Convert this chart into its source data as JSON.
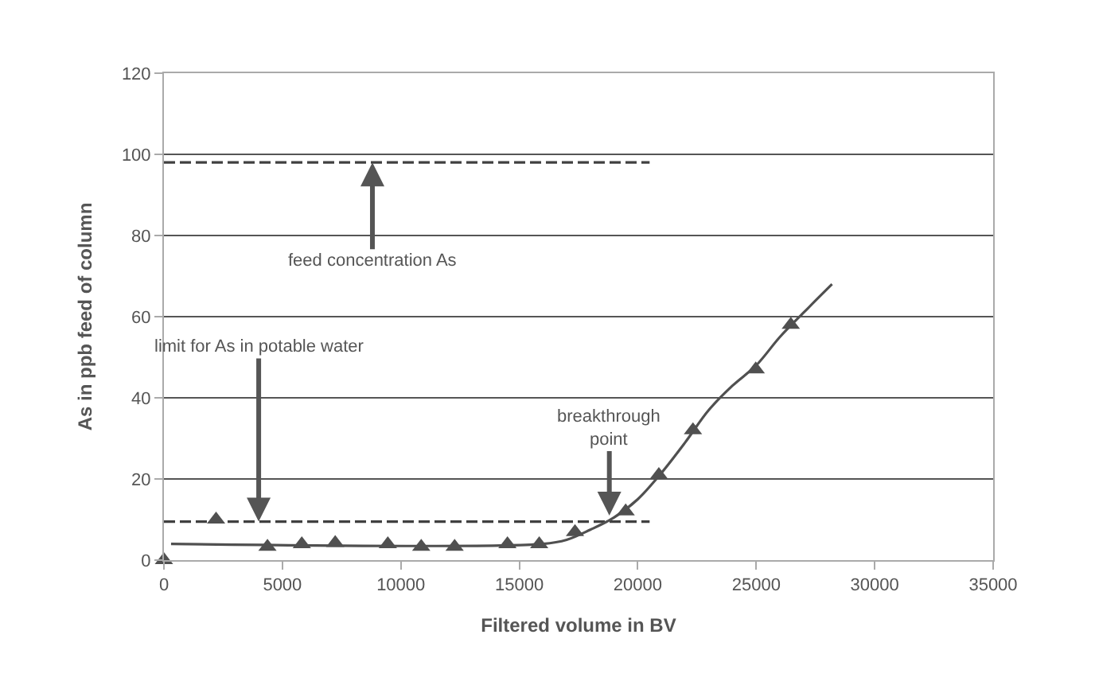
{
  "chart_data": {
    "type": "scatter",
    "xlabel": "Filtered volume in BV",
    "ylabel": "As in ppb feed of column",
    "xlim": [
      0,
      35000
    ],
    "xticks": [
      0,
      5000,
      10000,
      15000,
      20000,
      25000,
      30000,
      35000
    ],
    "ylim": [
      0,
      120
    ],
    "yticks": [
      0,
      20,
      40,
      60,
      80,
      100,
      120
    ],
    "grid": "y",
    "series": [
      {
        "type": "line",
        "color": "#404040",
        "line_style": "dashed",
        "marker": "none",
        "x": [
          0,
          20500
        ],
        "values": [
          98,
          98
        ]
      },
      {
        "type": "line",
        "color": "#404040",
        "line_style": "dashed",
        "marker": "none",
        "x": [
          0,
          20500
        ],
        "values": [
          9.5,
          9.5
        ]
      },
      {
        "type": "line",
        "color": "#505050",
        "line_style": "solid",
        "marker": "none",
        "x": [
          300,
          16000,
          17000,
          18000,
          19000,
          20000,
          21000,
          22000,
          23000,
          24000,
          25000,
          26000,
          27000,
          28200
        ],
        "values": [
          4,
          4,
          5,
          7.5,
          10.5,
          15,
          21.5,
          29,
          37,
          43,
          48,
          55,
          61,
          68
        ]
      },
      {
        "color": "#505050",
        "marker": "triangle",
        "x": [
          0,
          2200,
          4370,
          5820,
          7230,
          9450,
          10860,
          12270,
          14500,
          15840,
          17350,
          19490,
          20890,
          22330,
          24980,
          26460
        ],
        "values": [
          0,
          10,
          3.3,
          3.9,
          4.2,
          3.9,
          3.3,
          3.3,
          3.9,
          3.9,
          6.9,
          12,
          21,
          32,
          47,
          58
        ]
      }
    ],
    "annotations": [
      {
        "text": "feed concentration As",
        "x": 8800,
        "y": 98
      },
      {
        "text": "limit for As in potable water",
        "x": 4000,
        "y": 9.5
      },
      {
        "text": "breakthrough\npoint",
        "x": 18800,
        "y": 11
      }
    ]
  }
}
